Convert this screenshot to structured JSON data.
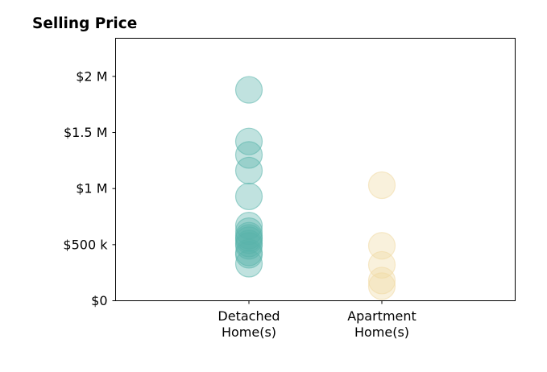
{
  "chart_data": {
    "type": "scatter",
    "title": "Selling Price",
    "xlabel": "",
    "ylabel": "",
    "categories": [
      "Detached\nHome(s)",
      "Apartment\nHome(s)"
    ],
    "ylim": [
      0,
      2340000
    ],
    "yticks": [
      {
        "value": 0,
        "label": "$0"
      },
      {
        "value": 500000,
        "label": "$500 k"
      },
      {
        "value": 1000000,
        "label": "$1 M"
      },
      {
        "value": 1500000,
        "label": "$1.5 M"
      },
      {
        "value": 2000000,
        "label": "$2 M"
      }
    ],
    "grid": false,
    "series": [
      {
        "category": "Detached\nHome(s)",
        "color": "#5ab4ac",
        "values": [
          1880000,
          1420000,
          1300000,
          1160000,
          930000,
          670000,
          620000,
          580000,
          560000,
          540000,
          510000,
          490000,
          430000,
          410000,
          330000
        ]
      },
      {
        "category": "Apartment\nHome(s)",
        "color": "#f0d9a2",
        "values": [
          1030000,
          490000,
          320000,
          180000,
          130000
        ]
      }
    ]
  }
}
